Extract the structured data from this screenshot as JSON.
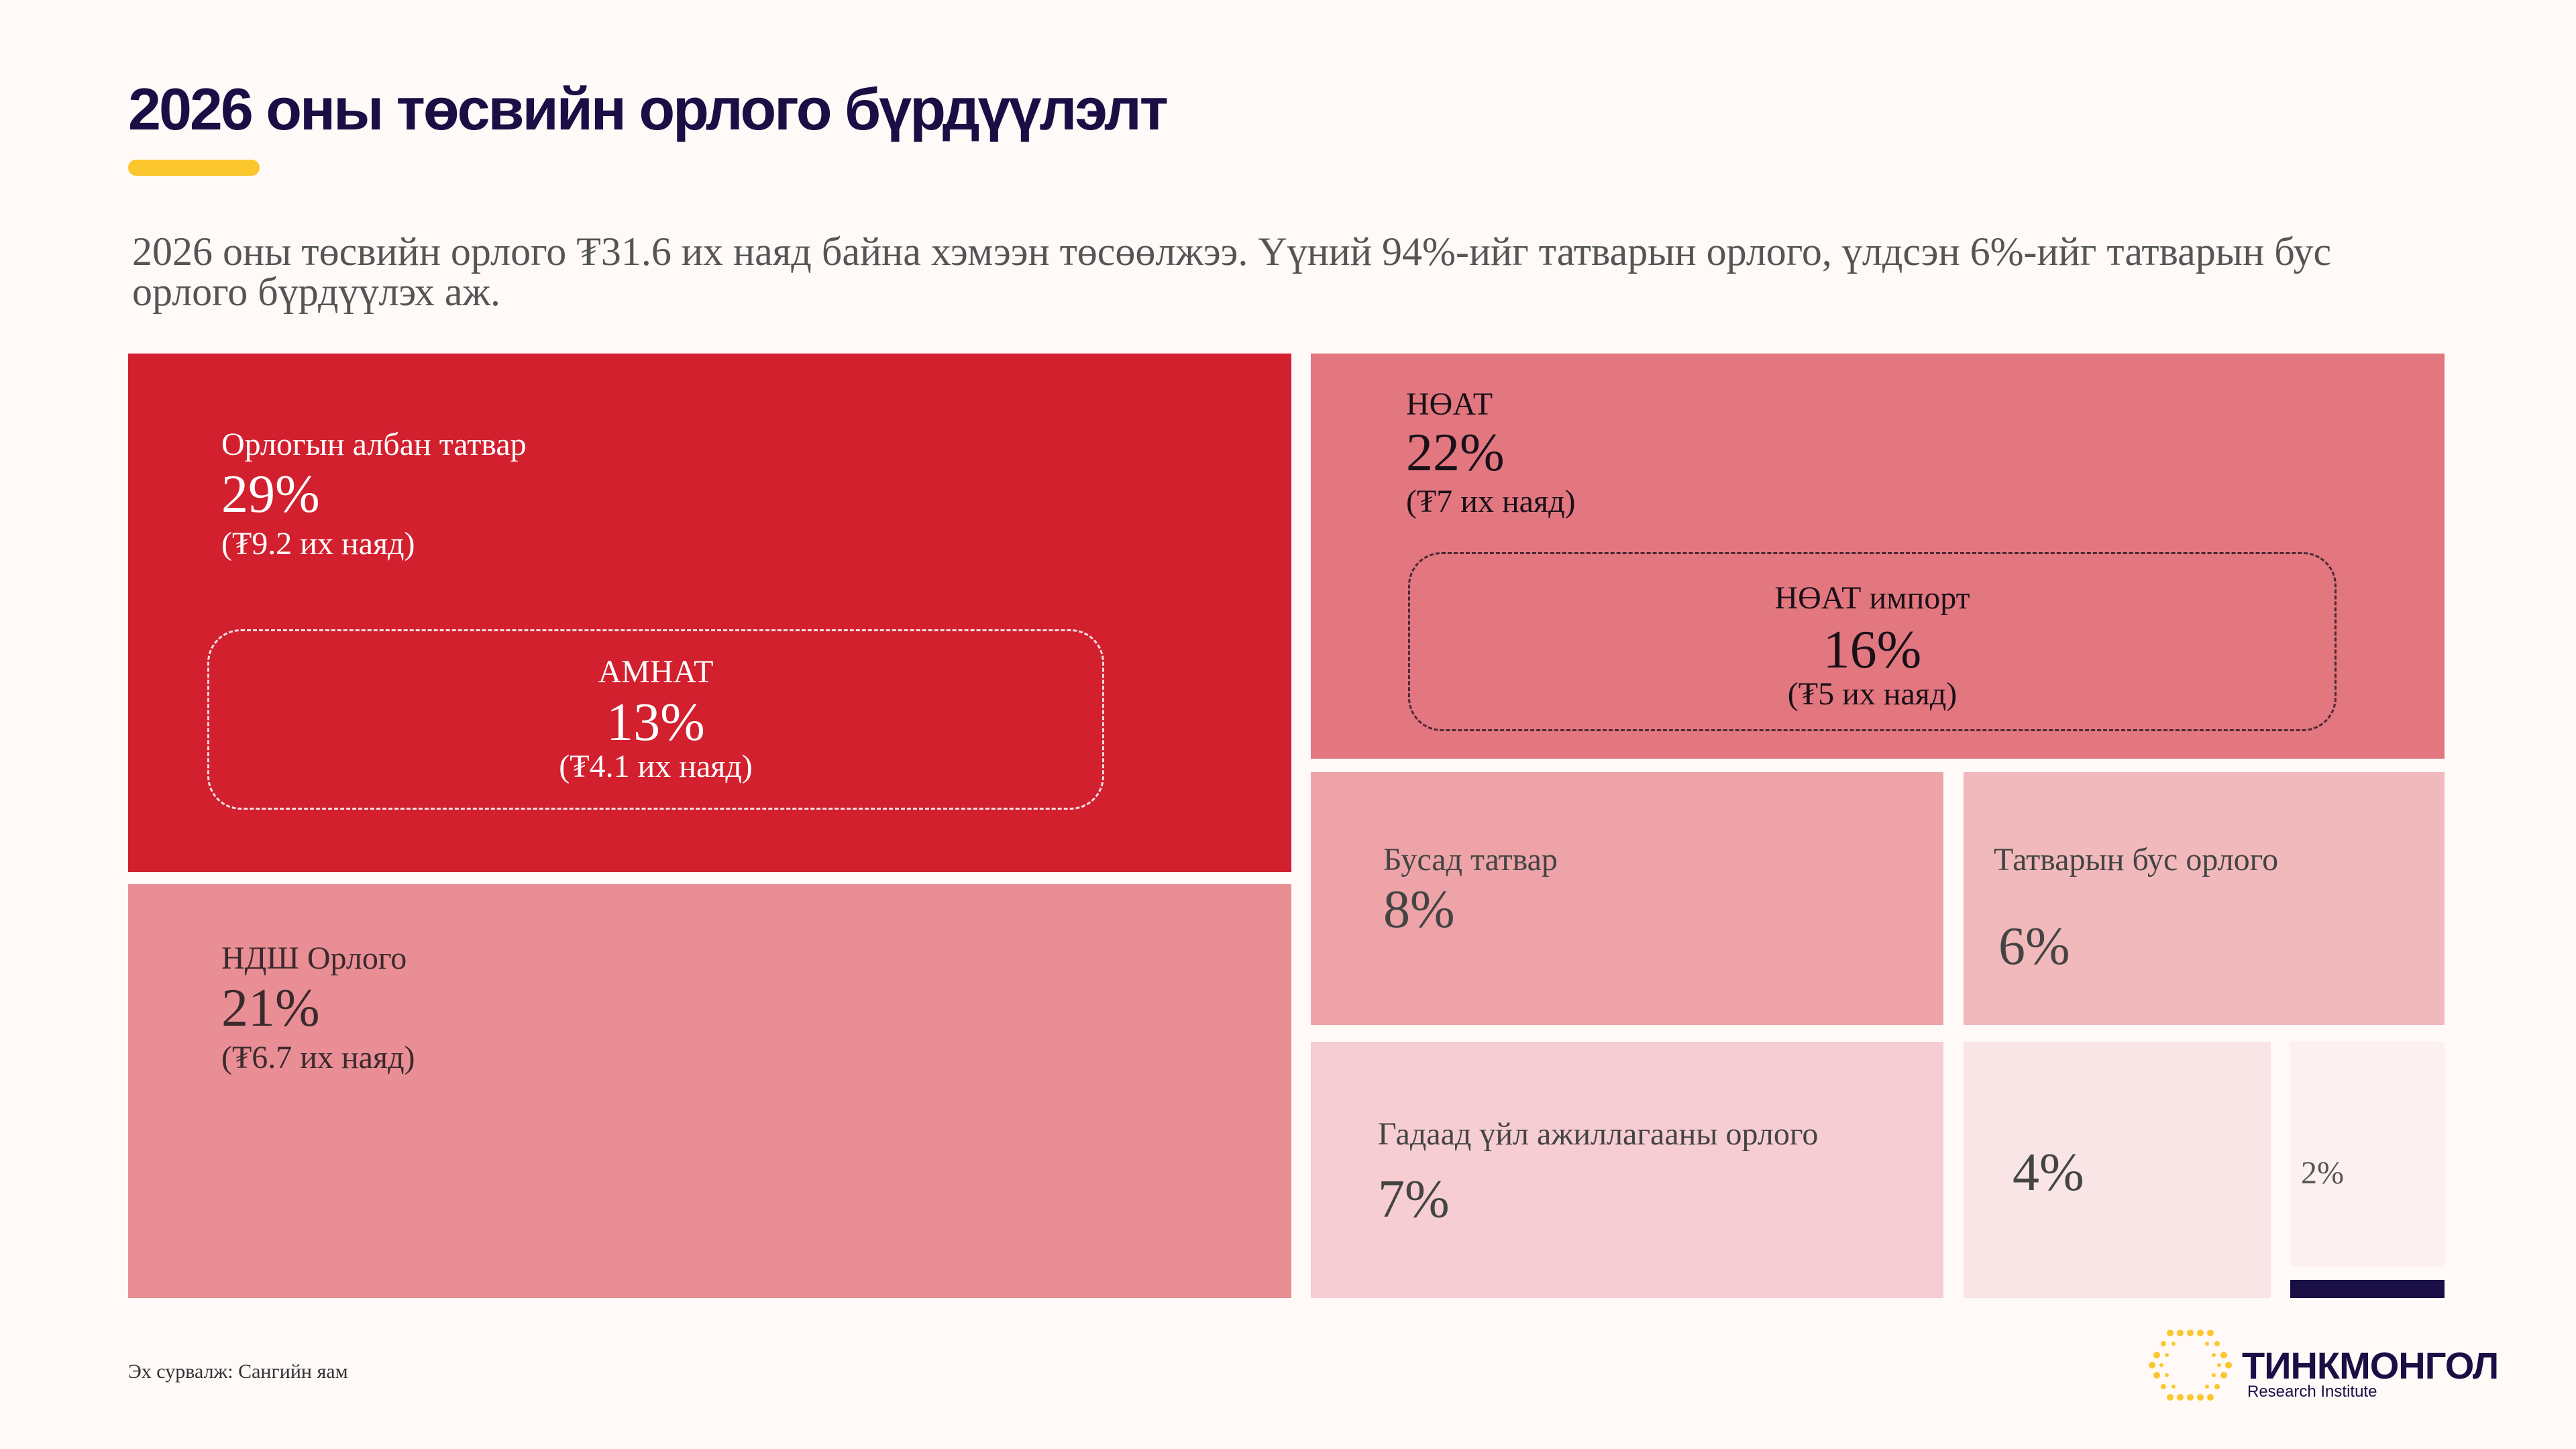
{
  "header": {
    "title": "2026 оны төсвийн орлого бүрдүүлэлт",
    "subtitle": "2026 оны төсвийн орлого ₮31.6 их наяд байна хэмээн төсөөлжээ. Үүний 94%-ийг татварын орлого, үлдсэн 6%-ийг татварын бус орлого бүрдүүлэх аж."
  },
  "chart_data": {
    "type": "treemap",
    "title": "2026 оны төсвийн орлого бүрдүүлэлт",
    "total": "₮31.6 их наяд",
    "items": [
      {
        "label": "Орлогын албан татвар",
        "value": 29,
        "pct": "29%",
        "amount": "(₮9.2 их наяд)",
        "color": "#D2202F",
        "sub": {
          "label": "АМНАТ",
          "value": 13,
          "pct": "13%",
          "amount": "(₮4.1 их наяд)"
        }
      },
      {
        "label": "НДШ Орлого",
        "value": 21,
        "pct": "21%",
        "amount": "(₮6.7 их наяд)",
        "color": "#E88E94"
      },
      {
        "label": "НӨАТ",
        "value": 22,
        "pct": "22%",
        "amount": "(₮7 их наяд)",
        "color": "#E27780",
        "sub": {
          "label": "НӨАТ импорт",
          "value": 16,
          "pct": "16%",
          "amount": "(₮5 их наяд)"
        }
      },
      {
        "label": "Бусад татвар",
        "value": 8,
        "pct": "8%",
        "color": "#EDA3A8"
      },
      {
        "label": "Татварын бус орлого",
        "value": 6,
        "pct": "6%",
        "color": "#F1B9BC"
      },
      {
        "label": "Гадаад үйл ажиллагааны орлого",
        "value": 7,
        "pct": "7%",
        "color": "#F5CDD2"
      },
      {
        "label": "",
        "value": 4,
        "pct": "4%",
        "color": "#F9E4E6"
      },
      {
        "label": "",
        "value": 2,
        "pct": "2%",
        "color": "#FDF0F1"
      }
    ]
  },
  "footer": {
    "source": "Эх сурвалж: Сангийн яам",
    "logo_name": "ТИНКМОНГОЛ",
    "logo_sub": "Research Institute"
  },
  "colors": {
    "navy": "#1A0F45",
    "accent": "#FCC72C",
    "background": "#FFF9F8"
  }
}
